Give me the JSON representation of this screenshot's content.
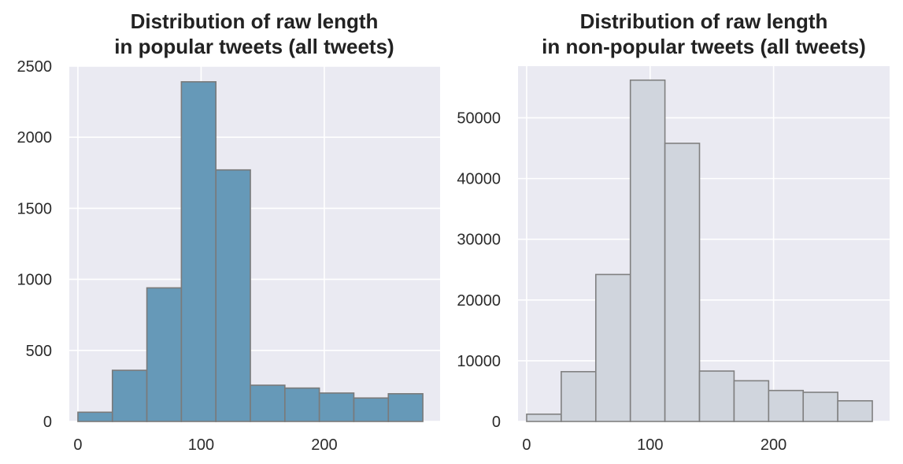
{
  "chart_data": [
    {
      "type": "bar",
      "title_line1": "Distribution of raw length",
      "title_line2": "in popular tweets (all tweets)",
      "xlabel": "",
      "ylabel": "",
      "x_ticks": [
        "0",
        "100",
        "200"
      ],
      "x_tick_values": [
        0,
        100,
        200
      ],
      "y_ticks": [
        "0",
        "500",
        "1000",
        "1500",
        "2000",
        "2500"
      ],
      "y_tick_values": [
        0,
        500,
        1000,
        1500,
        2000,
        2500
      ],
      "xlim": [
        -7,
        294
      ],
      "ylim": [
        0,
        2500
      ],
      "bin_edges": [
        0,
        28,
        56,
        84,
        112,
        140,
        168,
        196,
        224,
        252,
        280
      ],
      "values": [
        65,
        360,
        940,
        2390,
        1770,
        255,
        235,
        200,
        165,
        195
      ],
      "colors": {
        "bar_fill": "#6699b8",
        "bar_edge": "#7a7a7a",
        "plot_bg": "#eaeaf2",
        "grid": "#ffffff"
      },
      "grid": true
    },
    {
      "type": "bar",
      "title_line1": "Distribution of raw length",
      "title_line2": "in non-popular tweets (all tweets)",
      "xlabel": "",
      "ylabel": "",
      "x_ticks": [
        "0",
        "100",
        "200"
      ],
      "x_tick_values": [
        0,
        100,
        200
      ],
      "y_ticks": [
        "0",
        "10000",
        "20000",
        "30000",
        "40000",
        "50000"
      ],
      "y_tick_values": [
        0,
        10000,
        20000,
        30000,
        40000,
        50000
      ],
      "xlim": [
        -7,
        294
      ],
      "ylim": [
        0,
        58500
      ],
      "bin_edges": [
        0,
        28,
        56,
        84,
        112,
        140,
        168,
        196,
        224,
        252,
        280
      ],
      "values": [
        1200,
        8200,
        24200,
        56200,
        45800,
        8300,
        6700,
        5100,
        4800,
        3400
      ],
      "colors": {
        "bar_fill": "#d0d5dd",
        "bar_edge": "#808080",
        "plot_bg": "#eaeaf2",
        "grid": "#ffffff"
      },
      "grid": true
    }
  ]
}
